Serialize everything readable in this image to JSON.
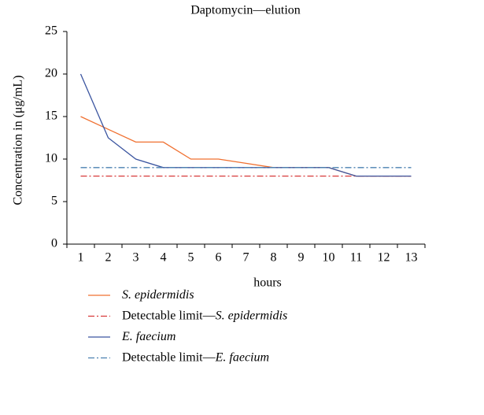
{
  "chart_data": {
    "type": "line",
    "title": "Daptomycin—elution",
    "x_label": "hours",
    "y_label": "Concentration in (μg/mL)",
    "categories": [
      "1",
      "2",
      "3",
      "4",
      "5",
      "6",
      "7",
      "8",
      "9",
      "10",
      "11",
      "12",
      "13"
    ],
    "ylim": [
      0,
      25
    ],
    "yticks": [
      0,
      5,
      10,
      15,
      20,
      25
    ],
    "series": [
      {
        "name": "S. epidermidis",
        "color": "#f07030",
        "dash": "solid",
        "values": [
          15,
          13.5,
          12,
          12,
          10,
          10,
          9.5,
          9,
          9,
          9,
          8,
          8,
          8
        ]
      },
      {
        "name": "Detectable limit—S. epidermidis",
        "color": "#d83a3a",
        "dash": "dashdot",
        "values": [
          8,
          8,
          8,
          8,
          8,
          8,
          8,
          8,
          8,
          8,
          8,
          8,
          8
        ]
      },
      {
        "name": "E. faecium",
        "color": "#3b55a0",
        "dash": "solid",
        "values": [
          20,
          12.5,
          10,
          9,
          9,
          9,
          9,
          9,
          9,
          9,
          8,
          8,
          8
        ]
      },
      {
        "name": "Detectable limit—E. faecium",
        "color": "#4a80b0",
        "dash": "dashdot",
        "values": [
          9,
          9,
          9,
          9,
          9,
          9,
          9,
          9,
          9,
          9,
          9,
          9,
          9
        ]
      }
    ]
  }
}
